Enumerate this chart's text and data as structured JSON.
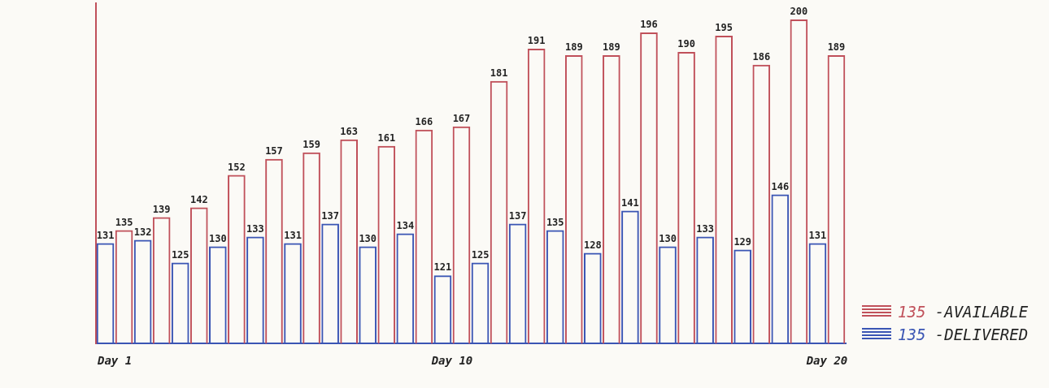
{
  "chart_data": {
    "type": "bar",
    "categories": [
      "Day 1",
      null,
      null,
      null,
      null,
      null,
      null,
      null,
      null,
      "Day 10",
      null,
      null,
      null,
      null,
      null,
      null,
      null,
      null,
      null,
      "Day 20"
    ],
    "series": [
      {
        "name": "135 -AVAILABLE",
        "color": "#c0505a",
        "values": [
          135,
          139,
          142,
          152,
          157,
          159,
          163,
          161,
          166,
          167,
          181,
          191,
          189,
          189,
          196,
          190,
          195,
          186,
          200,
          189
        ]
      },
      {
        "name": "135 -DELIVERED",
        "color": "#3a55b4",
        "values": [
          131,
          132,
          125,
          130,
          133,
          131,
          137,
          130,
          134,
          121,
          125,
          137,
          135,
          128,
          141,
          130,
          133,
          129,
          146,
          131
        ]
      }
    ],
    "ylim": [
      100,
      205
    ],
    "data_labels": true,
    "tick_labels": "x",
    "grid": false,
    "legend": "right"
  }
}
